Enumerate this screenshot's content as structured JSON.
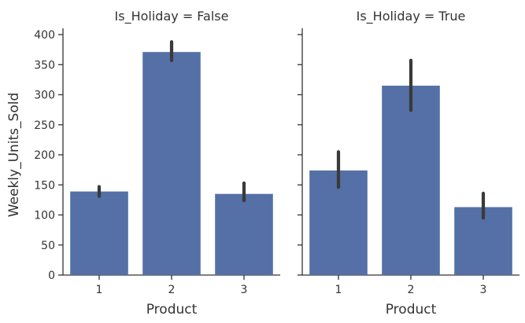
{
  "chart_data": {
    "type": "bar",
    "facet_variable": "Is_Holiday",
    "xlabel": "Product",
    "ylabel": "Weekly_Units_Sold",
    "categories": [
      "1",
      "2",
      "3"
    ],
    "ylim": [
      0,
      400
    ],
    "yticks": [
      0,
      50,
      100,
      150,
      200,
      250,
      300,
      350,
      400
    ],
    "grid": false,
    "bar_color": "#5470a6",
    "errorbar_color": "#3a3a3a",
    "panels": [
      {
        "title": "Is_Holiday = False",
        "values": [
          139,
          371,
          135
        ],
        "error_low": [
          131,
          357,
          124
        ],
        "error_high": [
          147,
          388,
          153
        ]
      },
      {
        "title": "Is_Holiday = True",
        "values": [
          174,
          315,
          113
        ],
        "error_low": [
          146,
          274,
          95
        ],
        "error_high": [
          205,
          357,
          136
        ]
      }
    ]
  }
}
